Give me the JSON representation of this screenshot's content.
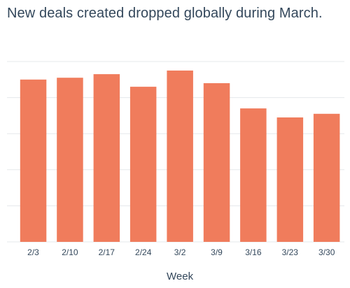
{
  "chart_data": {
    "type": "bar",
    "title": "New deals created dropped globally during March.",
    "xlabel": "Week",
    "ylabel": "",
    "categories": [
      "2/3",
      "2/10",
      "2/17",
      "2/24",
      "3/2",
      "3/9",
      "3/16",
      "3/23",
      "3/30"
    ],
    "values": [
      90,
      91,
      93,
      86,
      95,
      88,
      74,
      69,
      71
    ],
    "ylim": [
      0,
      100
    ],
    "grid": true,
    "bar_color": "#f07c5c",
    "gridline_color": "#e5e8eb",
    "text_color": "#33475b"
  }
}
